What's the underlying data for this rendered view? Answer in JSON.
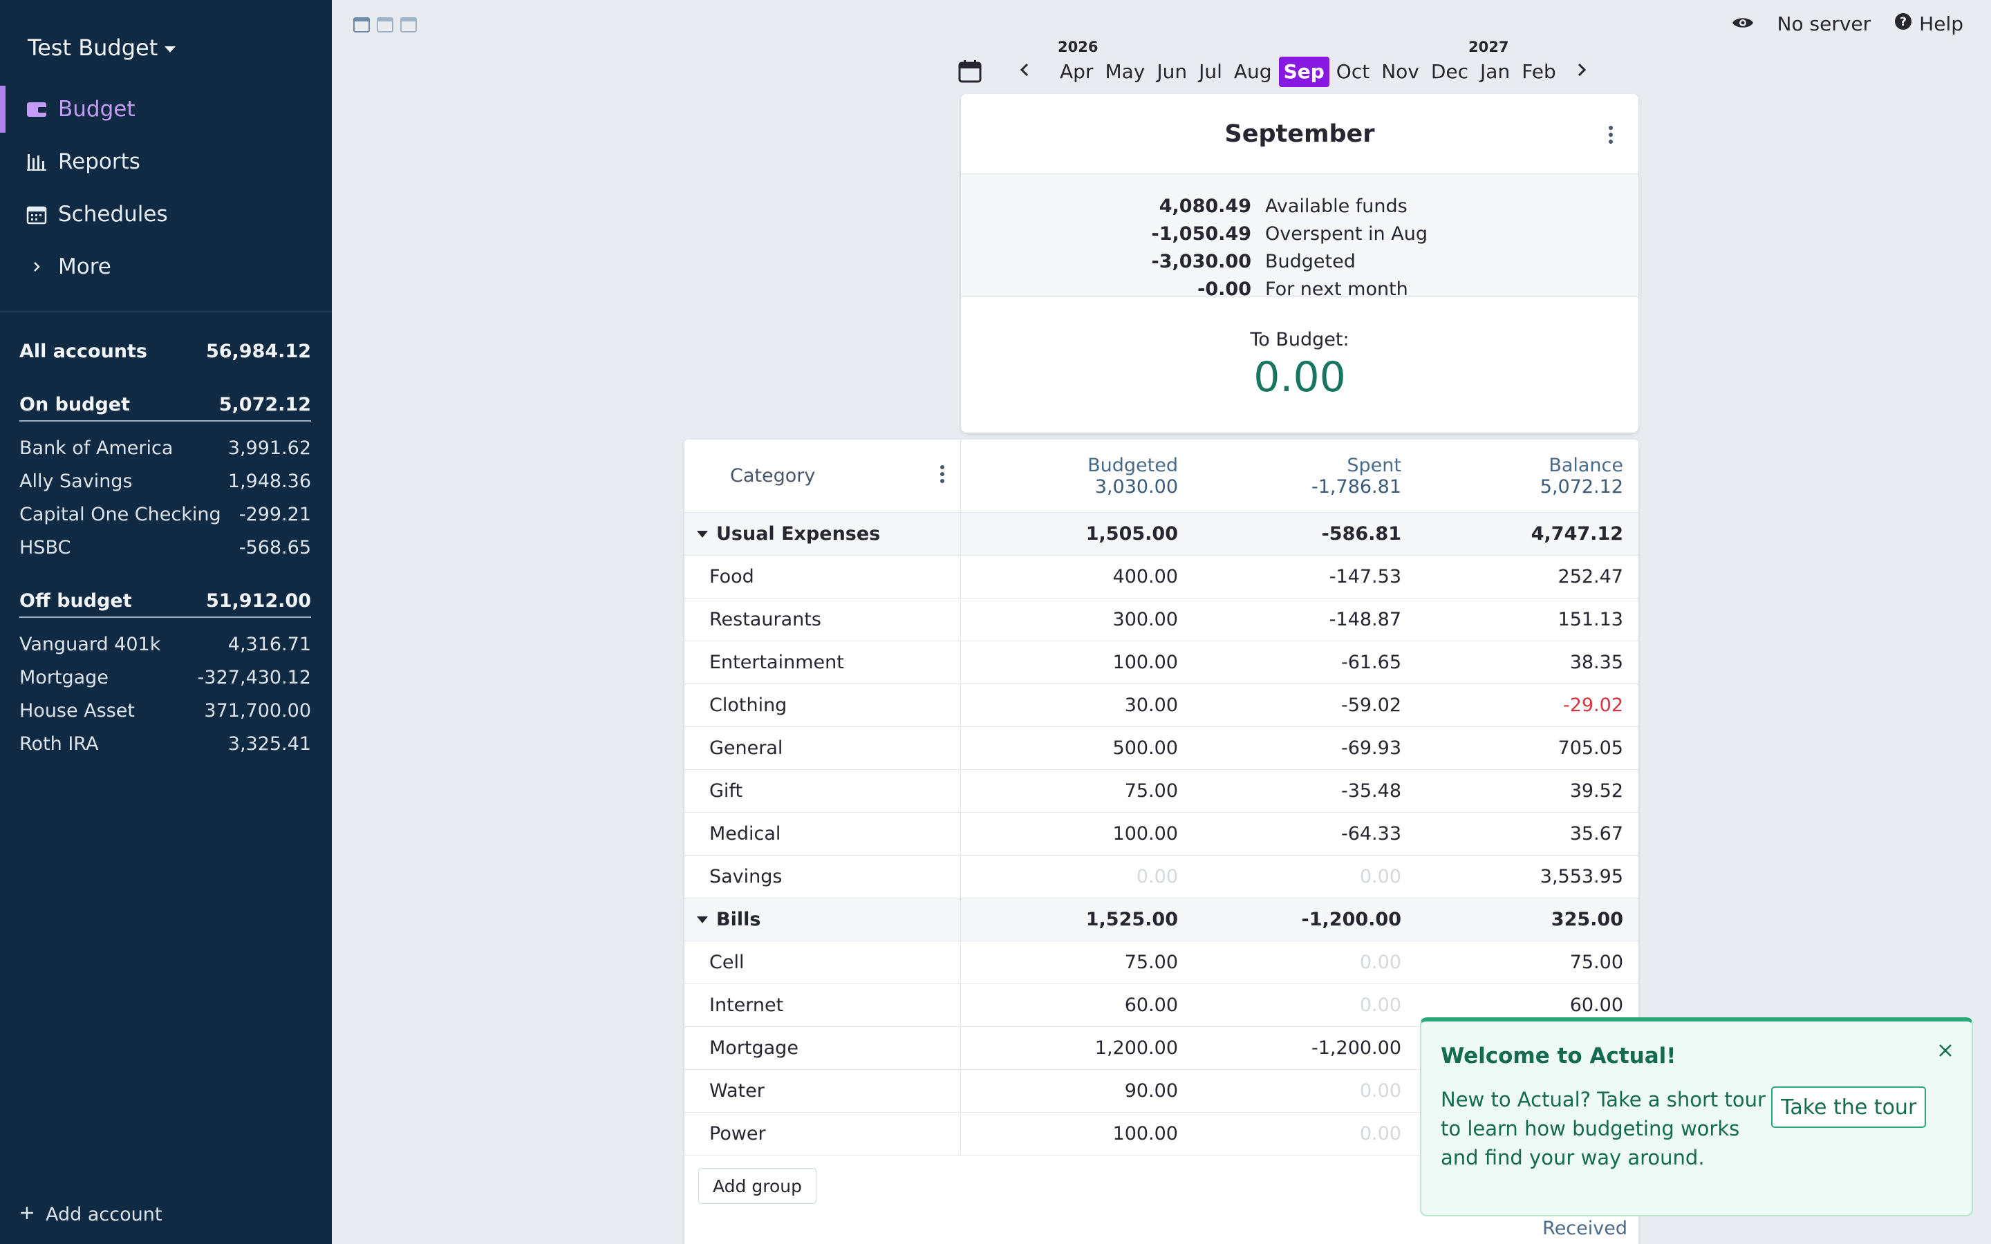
{
  "app": {
    "budget_name": "Test Budget"
  },
  "nav": [
    {
      "label": "Budget",
      "icon": "wallet-icon",
      "active": true
    },
    {
      "label": "Reports",
      "icon": "bar-chart-icon"
    },
    {
      "label": "Schedules",
      "icon": "calendar-icon"
    },
    {
      "label": "More",
      "icon": "chevron-right-icon"
    }
  ],
  "accounts": {
    "all": {
      "label": "All accounts",
      "value": "56,984.12"
    },
    "on_budget": {
      "label": "On budget",
      "value": "5,072.12"
    },
    "on_budget_items": [
      {
        "label": "Bank of America",
        "value": "3,991.62"
      },
      {
        "label": "Ally Savings",
        "value": "1,948.36"
      },
      {
        "label": "Capital One Checking",
        "value": "-299.21"
      },
      {
        "label": "HSBC",
        "value": "-568.65"
      }
    ],
    "off_budget": {
      "label": "Off budget",
      "value": "51,912.00"
    },
    "off_budget_items": [
      {
        "label": "Vanguard 401k",
        "value": "4,316.71"
      },
      {
        "label": "Mortgage",
        "value": "-327,430.12"
      },
      {
        "label": "House Asset",
        "value": "371,700.00"
      },
      {
        "label": "Roth IRA",
        "value": "3,325.41"
      }
    ],
    "add_label": "Add account"
  },
  "topbar": {
    "server": "No server",
    "help": "Help"
  },
  "month_picker": {
    "years": [
      "2026",
      "2027"
    ],
    "months": [
      "Apr",
      "May",
      "Jun",
      "Jul",
      "Aug",
      "Sep",
      "Oct",
      "Nov",
      "Dec",
      "Jan",
      "Feb"
    ],
    "selected": "Sep"
  },
  "summary": {
    "title": "September",
    "lines": [
      {
        "value": "4,080.49",
        "label": "Available funds"
      },
      {
        "value": "-1,050.49",
        "label": "Overspent in Aug"
      },
      {
        "value": "-3,030.00",
        "label": "Budgeted"
      },
      {
        "value": "-0.00",
        "label": "For next month"
      }
    ],
    "to_budget_label": "To Budget:",
    "to_budget_value": "0.00"
  },
  "table": {
    "header": {
      "category": "Category",
      "budgeted": {
        "label": "Budgeted",
        "value": "3,030.00"
      },
      "spent": {
        "label": "Spent",
        "value": "-1,786.81"
      },
      "balance": {
        "label": "Balance",
        "value": "5,072.12"
      }
    },
    "groups": [
      {
        "name": "Usual Expenses",
        "budgeted": "1,505.00",
        "spent": "-586.81",
        "balance": "4,747.12",
        "rows": [
          {
            "name": "Food",
            "budgeted": "400.00",
            "spent": "-147.53",
            "balance": "252.47"
          },
          {
            "name": "Restaurants",
            "budgeted": "300.00",
            "spent": "-148.87",
            "balance": "151.13"
          },
          {
            "name": "Entertainment",
            "budgeted": "100.00",
            "spent": "-61.65",
            "balance": "38.35"
          },
          {
            "name": "Clothing",
            "budgeted": "30.00",
            "spent": "-59.02",
            "balance": "-29.02"
          },
          {
            "name": "General",
            "budgeted": "500.00",
            "spent": "-69.93",
            "balance": "705.05"
          },
          {
            "name": "Gift",
            "budgeted": "75.00",
            "spent": "-35.48",
            "balance": "39.52"
          },
          {
            "name": "Medical",
            "budgeted": "100.00",
            "spent": "-64.33",
            "balance": "35.67"
          },
          {
            "name": "Savings",
            "budgeted": "0.00",
            "spent": "0.00",
            "balance": "3,553.95"
          }
        ]
      },
      {
        "name": "Bills",
        "budgeted": "1,525.00",
        "spent": "-1,200.00",
        "balance": "325.00",
        "rows": [
          {
            "name": "Cell",
            "budgeted": "75.00",
            "spent": "0.00",
            "balance": "75.00"
          },
          {
            "name": "Internet",
            "budgeted": "60.00",
            "spent": "0.00",
            "balance": "60.00"
          },
          {
            "name": "Mortgage",
            "budgeted": "1,200.00",
            "spent": "-1,200.00",
            "balance": ""
          },
          {
            "name": "Water",
            "budgeted": "90.00",
            "spent": "0.00",
            "balance": ""
          },
          {
            "name": "Power",
            "budgeted": "100.00",
            "spent": "0.00",
            "balance": ""
          }
        ]
      }
    ],
    "add_group": "Add group",
    "received": "Received"
  },
  "toast": {
    "title": "Welcome to Actual!",
    "body": "New to Actual? Take a short tour to learn how budgeting works and find your way around.",
    "button": "Take the tour"
  },
  "colors": {
    "accent": "#8719e0",
    "sidebar": "#102a43",
    "positive": "#177660",
    "negative": "#d3343f"
  }
}
